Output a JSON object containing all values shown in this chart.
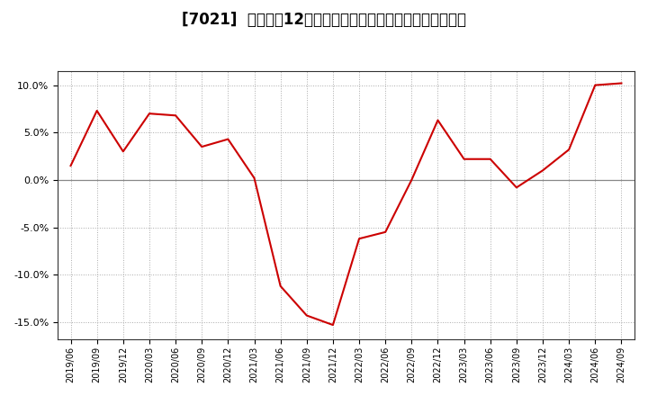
{
  "title": "[7021]  売上高の12か月移動合計の対前年同期増減率の推移",
  "line_color": "#cc0000",
  "background_color": "#ffffff",
  "grid_color": "#aaaaaa",
  "zero_line_color": "#888888",
  "ylim": [
    -0.168,
    0.115
  ],
  "yticks": [
    -0.15,
    -0.1,
    -0.05,
    0.0,
    0.05,
    0.1
  ],
  "dates": [
    "2019/06",
    "2019/09",
    "2019/12",
    "2020/03",
    "2020/06",
    "2020/09",
    "2020/12",
    "2021/03",
    "2021/06",
    "2021/09",
    "2021/12",
    "2022/03",
    "2022/06",
    "2022/09",
    "2022/12",
    "2023/03",
    "2023/06",
    "2023/09",
    "2023/12",
    "2024/03",
    "2024/06",
    "2024/09"
  ],
  "values": [
    0.015,
    0.073,
    0.03,
    0.07,
    0.068,
    0.035,
    0.043,
    0.002,
    -0.112,
    -0.143,
    -0.153,
    -0.062,
    -0.055,
    0.0,
    0.063,
    0.022,
    0.022,
    -0.008,
    0.01,
    0.032,
    0.1,
    0.102
  ],
  "title_fontsize": 12,
  "tick_fontsize": 8,
  "xtick_fontsize": 7
}
